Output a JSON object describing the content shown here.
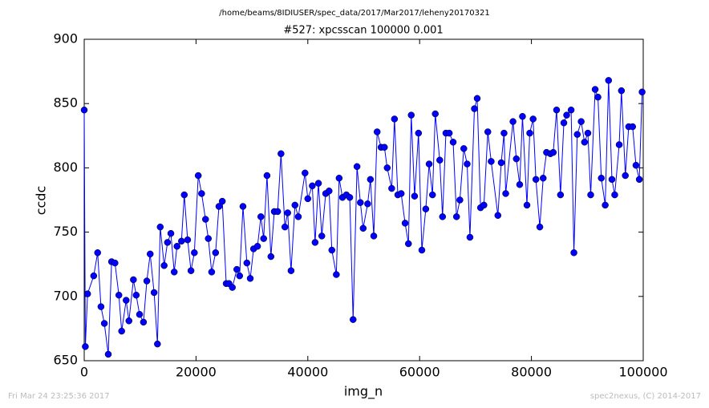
{
  "chart_data": {
    "type": "line",
    "suptitle": "/home/beams/8IDIUSER/spec_data/2017/Mar2017/leheny20170321",
    "title": "#527: xpcsscan 100000 0.001",
    "xlabel": "img_n",
    "ylabel": "ccdc",
    "footer_left": "Fri Mar 24 23:25:36 2017",
    "footer_right": "spec2nexus, (C) 2014-2017",
    "xlim": [
      0,
      100000
    ],
    "ylim": [
      650,
      900
    ],
    "xticks": [
      0,
      20000,
      40000,
      60000,
      80000,
      100000
    ],
    "yticks": [
      650,
      700,
      750,
      800,
      850,
      900
    ],
    "series": [
      {
        "color": "#0000ff",
        "x": [
          0,
          200,
          600,
          1700,
          2400,
          3000,
          3600,
          4300,
          4900,
          5500,
          6200,
          6700,
          7500,
          8000,
          8800,
          9300,
          9900,
          10600,
          11200,
          11800,
          12500,
          13100,
          13600,
          14300,
          14900,
          15500,
          16100,
          16600,
          17400,
          17900,
          18500,
          19100,
          19700,
          20400,
          21000,
          21700,
          22200,
          22800,
          23500,
          24100,
          24700,
          25400,
          25900,
          26500,
          27300,
          27800,
          28400,
          29100,
          29700,
          30300,
          31000,
          31600,
          32100,
          32700,
          33400,
          34000,
          34600,
          35200,
          35900,
          36400,
          37000,
          37700,
          38300,
          39500,
          40000,
          40800,
          41300,
          41900,
          42500,
          43200,
          43800,
          44300,
          45100,
          45600,
          46200,
          46900,
          47500,
          48100,
          48800,
          49400,
          49900,
          50700,
          51200,
          51800,
          52400,
          53100,
          53700,
          54200,
          55000,
          55500,
          56100,
          56700,
          57400,
          58000,
          58500,
          59100,
          59800,
          60400,
          61100,
          61700,
          62300,
          62800,
          63600,
          64100,
          64700,
          65300,
          66000,
          66600,
          67200,
          67900,
          68500,
          69000,
          69800,
          70300,
          70900,
          71500,
          72200,
          72800,
          74000,
          74600,
          75100,
          75400,
          76700,
          77300,
          77900,
          78400,
          79200,
          79700,
          80300,
          80800,
          81500,
          82100,
          82700,
          83400,
          83900,
          84500,
          85200,
          85800,
          86300,
          87100,
          87600,
          88200,
          88900,
          89500,
          90100,
          90600,
          91400,
          91900,
          92500,
          93200,
          93800,
          94400,
          94900,
          95700,
          96100,
          96800,
          97400,
          98100,
          98700,
          99300,
          99800
        ],
        "values": [
          845,
          661,
          702,
          716,
          734,
          692,
          679,
          655,
          727,
          726,
          701,
          673,
          697,
          681,
          713,
          701,
          686,
          680,
          712,
          733,
          703,
          663,
          754,
          724,
          742,
          749,
          719,
          739,
          743,
          779,
          744,
          720,
          734,
          794,
          780,
          760,
          745,
          719,
          734,
          770,
          774,
          710,
          710,
          707,
          721,
          716,
          770,
          726,
          714,
          737,
          739,
          762,
          745,
          794,
          731,
          766,
          766,
          811,
          754,
          765,
          720,
          771,
          762,
          796,
          776,
          786,
          742,
          788,
          747,
          780,
          782,
          736,
          717,
          792,
          777,
          779,
          777,
          682,
          801,
          773,
          753,
          772,
          791,
          747,
          828,
          816,
          816,
          800,
          784,
          838,
          779,
          780,
          757,
          741,
          841,
          778,
          827,
          736,
          768,
          803,
          779,
          842,
          806,
          762,
          827,
          827,
          820,
          762,
          775,
          815,
          803,
          746,
          846,
          854,
          769,
          771,
          828,
          805,
          763,
          804,
          827,
          780,
          836,
          807,
          787,
          840,
          771,
          827,
          838,
          791,
          754,
          792,
          812,
          811,
          812,
          845,
          779,
          835,
          841,
          845,
          734,
          826,
          836,
          820,
          827,
          779,
          861,
          855,
          792,
          771,
          868,
          791,
          779,
          818,
          860,
          794,
          832,
          832,
          802,
          791,
          859
        ]
      }
    ]
  }
}
